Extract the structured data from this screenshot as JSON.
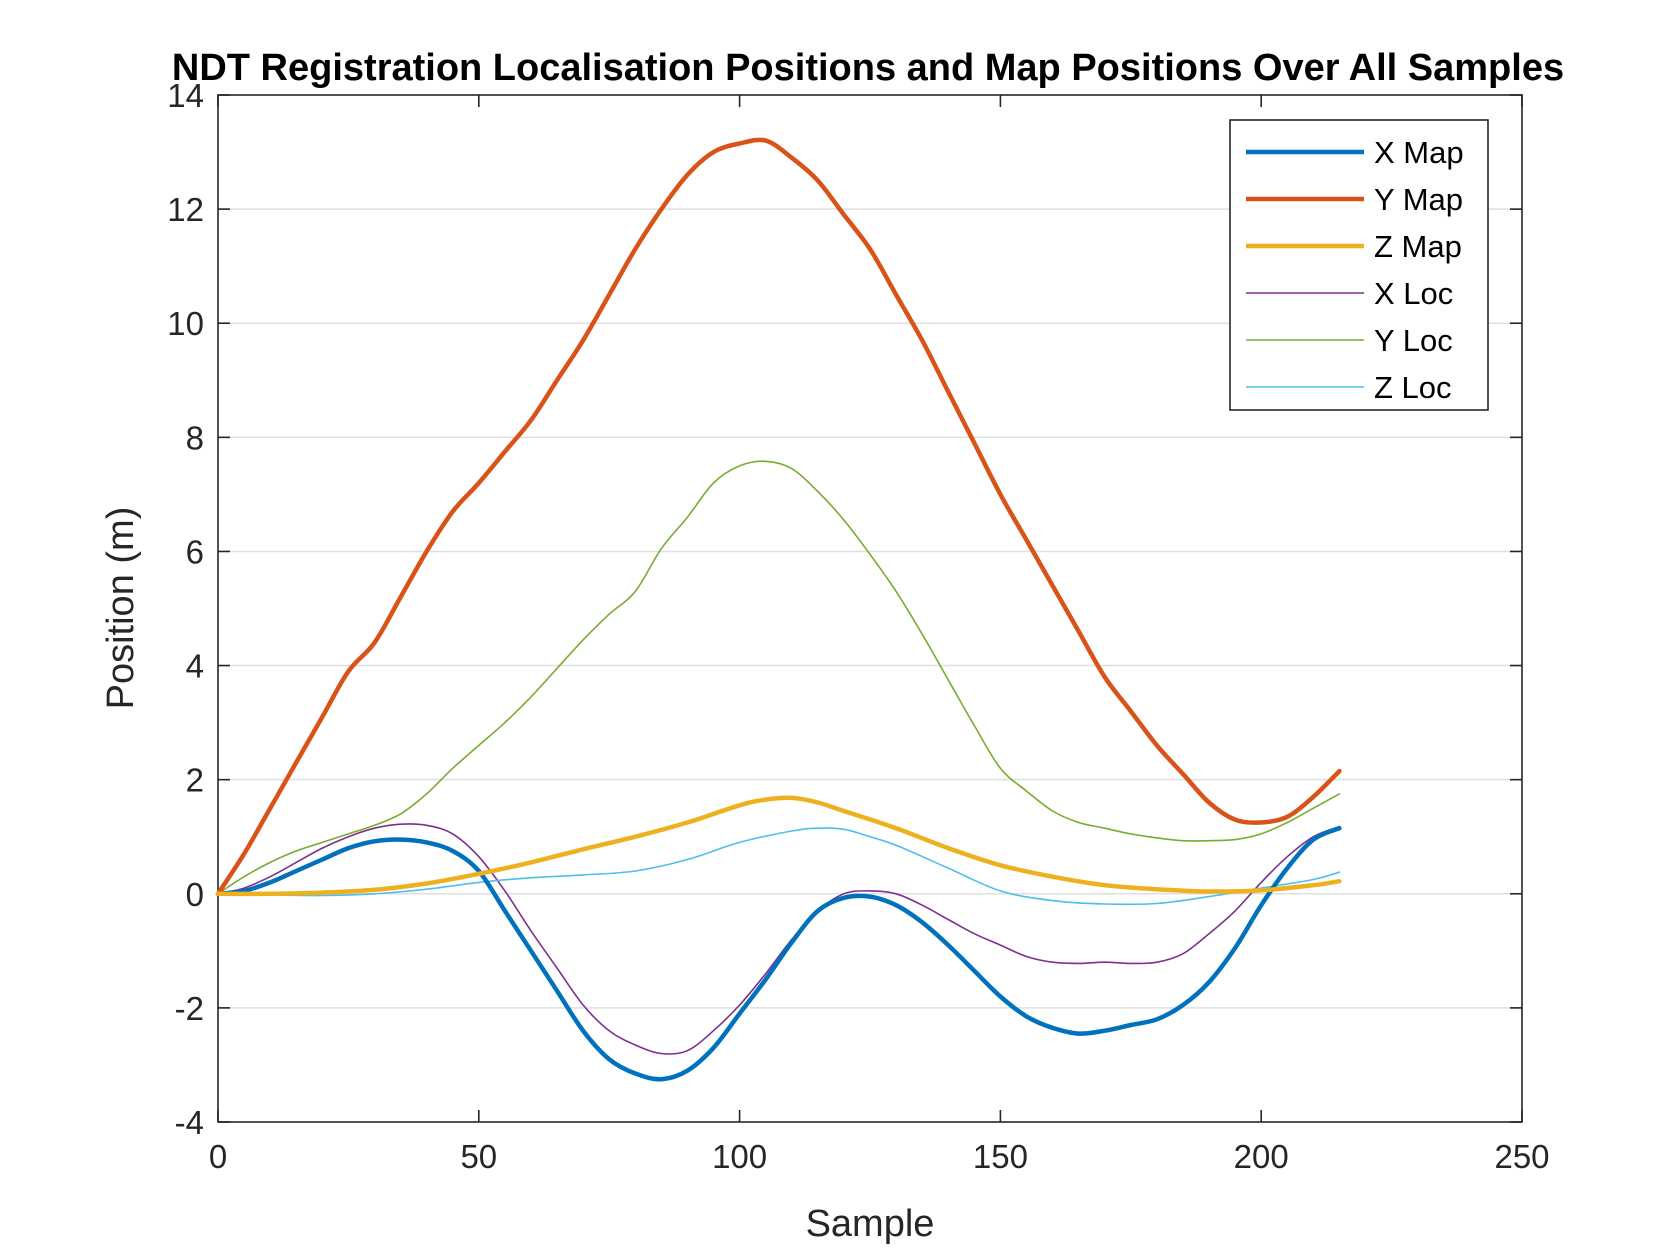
{
  "chart_data": {
    "type": "line",
    "title": "NDT Registration Localisation Positions and Map Positions Over All Samples",
    "xlabel": "Sample",
    "ylabel": "Position (m)",
    "xlim": [
      0,
      250
    ],
    "ylim": [
      -4,
      14
    ],
    "xticks": [
      "0",
      "50",
      "100",
      "150",
      "200",
      "250"
    ],
    "yticks": [
      "-4",
      "-2",
      "0",
      "2",
      "4",
      "6",
      "8",
      "10",
      "12",
      "14"
    ],
    "grid": "horizontal",
    "legend_position": "top-right",
    "series": [
      {
        "name": "X Map",
        "color": "#0072BD",
        "width": "thick",
        "x": [
          0,
          5,
          10,
          15,
          20,
          25,
          30,
          35,
          40,
          45,
          50,
          55,
          60,
          65,
          70,
          75,
          80,
          85,
          90,
          95,
          100,
          105,
          110,
          115,
          120,
          125,
          130,
          135,
          140,
          145,
          150,
          155,
          160,
          165,
          170,
          175,
          180,
          185,
          190,
          195,
          200,
          205,
          210,
          215
        ],
        "y": [
          0,
          0.05,
          0.2,
          0.4,
          0.6,
          0.8,
          0.92,
          0.95,
          0.9,
          0.75,
          0.4,
          -0.3,
          -1.0,
          -1.7,
          -2.4,
          -2.9,
          -3.15,
          -3.25,
          -3.1,
          -2.7,
          -2.1,
          -1.5,
          -0.85,
          -0.3,
          -0.07,
          -0.05,
          -0.2,
          -0.5,
          -0.9,
          -1.35,
          -1.8,
          -2.15,
          -2.35,
          -2.45,
          -2.4,
          -2.3,
          -2.2,
          -1.95,
          -1.55,
          -0.95,
          -0.2,
          0.45,
          0.95,
          1.15
        ]
      },
      {
        "name": "Y Map",
        "color": "#D95319",
        "width": "thick",
        "x": [
          0,
          5,
          10,
          15,
          20,
          25,
          30,
          35,
          40,
          45,
          50,
          55,
          60,
          65,
          70,
          75,
          80,
          85,
          90,
          95,
          100,
          105,
          110,
          115,
          120,
          125,
          130,
          135,
          140,
          145,
          150,
          155,
          160,
          165,
          170,
          175,
          180,
          185,
          190,
          195,
          200,
          205,
          210,
          215
        ],
        "y": [
          0,
          0.7,
          1.5,
          2.3,
          3.1,
          3.9,
          4.4,
          5.2,
          6.0,
          6.7,
          7.2,
          7.75,
          8.3,
          9.0,
          9.7,
          10.5,
          11.3,
          12.0,
          12.6,
          13.0,
          13.15,
          13.2,
          12.9,
          12.5,
          11.9,
          11.3,
          10.5,
          9.7,
          8.8,
          7.9,
          7.0,
          6.2,
          5.4,
          4.6,
          3.8,
          3.2,
          2.6,
          2.1,
          1.6,
          1.3,
          1.25,
          1.35,
          1.7,
          2.15
        ]
      },
      {
        "name": "Z Map",
        "color": "#EDB120",
        "width": "thick",
        "x": [
          0,
          10,
          20,
          30,
          40,
          50,
          60,
          70,
          80,
          90,
          100,
          105,
          110,
          115,
          120,
          130,
          140,
          150,
          160,
          170,
          180,
          190,
          200,
          210,
          215
        ],
        "y": [
          0,
          0.0,
          0.02,
          0.07,
          0.18,
          0.35,
          0.55,
          0.78,
          1.0,
          1.25,
          1.55,
          1.65,
          1.68,
          1.6,
          1.45,
          1.15,
          0.8,
          0.5,
          0.3,
          0.15,
          0.08,
          0.04,
          0.06,
          0.15,
          0.22
        ]
      },
      {
        "name": "X Loc",
        "color": "#7E2F8E",
        "width": "thin",
        "x": [
          0,
          5,
          10,
          15,
          20,
          25,
          30,
          35,
          40,
          45,
          50,
          55,
          60,
          65,
          70,
          75,
          80,
          85,
          90,
          95,
          100,
          105,
          110,
          115,
          120,
          125,
          130,
          135,
          140,
          145,
          150,
          155,
          160,
          165,
          170,
          175,
          180,
          185,
          190,
          195,
          200,
          205,
          210,
          215
        ],
        "y": [
          0,
          0.1,
          0.3,
          0.55,
          0.8,
          1.0,
          1.15,
          1.22,
          1.2,
          1.05,
          0.65,
          0.05,
          -0.65,
          -1.3,
          -1.95,
          -2.4,
          -2.65,
          -2.8,
          -2.75,
          -2.4,
          -1.95,
          -1.4,
          -0.8,
          -0.3,
          0.0,
          0.05,
          0.0,
          -0.2,
          -0.45,
          -0.7,
          -0.9,
          -1.1,
          -1.2,
          -1.22,
          -1.2,
          -1.22,
          -1.2,
          -1.05,
          -0.7,
          -0.3,
          0.2,
          0.65,
          1.0,
          1.18
        ]
      },
      {
        "name": "Y Loc",
        "color": "#77AC30",
        "width": "thin",
        "x": [
          0,
          5,
          10,
          15,
          20,
          25,
          30,
          35,
          40,
          45,
          50,
          55,
          60,
          65,
          70,
          75,
          80,
          85,
          90,
          95,
          100,
          105,
          110,
          115,
          120,
          125,
          130,
          135,
          140,
          145,
          150,
          155,
          160,
          165,
          170,
          175,
          180,
          185,
          190,
          195,
          200,
          205,
          210,
          215
        ],
        "y": [
          0,
          0.3,
          0.55,
          0.75,
          0.9,
          1.05,
          1.2,
          1.4,
          1.75,
          2.2,
          2.6,
          3.0,
          3.45,
          3.95,
          4.45,
          4.9,
          5.3,
          6.05,
          6.6,
          7.2,
          7.5,
          7.58,
          7.45,
          7.05,
          6.55,
          5.95,
          5.3,
          4.55,
          3.75,
          2.95,
          2.2,
          1.8,
          1.45,
          1.25,
          1.15,
          1.05,
          0.98,
          0.93,
          0.93,
          0.95,
          1.05,
          1.25,
          1.5,
          1.75
        ]
      },
      {
        "name": "Z Loc",
        "color": "#4DBEEE",
        "width": "thin",
        "x": [
          0,
          10,
          20,
          30,
          40,
          50,
          60,
          70,
          80,
          90,
          100,
          110,
          115,
          120,
          125,
          130,
          140,
          150,
          160,
          170,
          180,
          190,
          200,
          210,
          215
        ],
        "y": [
          0,
          -0.02,
          -0.03,
          0.0,
          0.08,
          0.2,
          0.28,
          0.33,
          0.4,
          0.6,
          0.9,
          1.1,
          1.15,
          1.13,
          1.0,
          0.85,
          0.45,
          0.05,
          -0.12,
          -0.18,
          -0.17,
          -0.05,
          0.1,
          0.25,
          0.38
        ]
      }
    ]
  }
}
